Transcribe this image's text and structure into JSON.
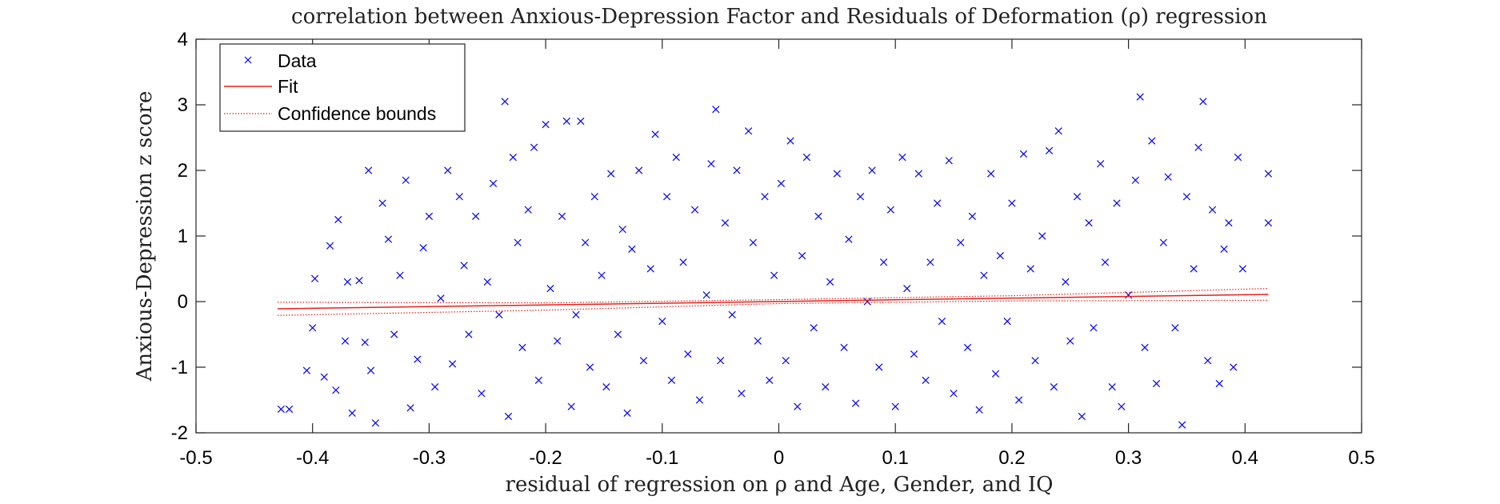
{
  "chart_data": {
    "type": "scatter",
    "title": "correlation between Anxious-Depression Factor and Residuals of Deformation (ρ) regression",
    "xlabel": "residual of regression on ρ and Age, Gender, and IQ",
    "ylabel": "Anxious-Depression z score",
    "xlim": [
      -0.5,
      0.5
    ],
    "ylim": [
      -2,
      4
    ],
    "xticks": [
      -0.5,
      -0.4,
      -0.3,
      -0.2,
      -0.1,
      0,
      0.1,
      0.2,
      0.3,
      0.4,
      0.5
    ],
    "xtick_labels": [
      "-0.5",
      "-0.4",
      "-0.3",
      "-0.2",
      "-0.1",
      "0",
      "0.1",
      "0.2",
      "0.3",
      "0.4",
      "0.5"
    ],
    "yticks": [
      -2,
      -1,
      0,
      1,
      2,
      3,
      4
    ],
    "ytick_labels": [
      "-2",
      "-1",
      "0",
      "1",
      "2",
      "3",
      "4"
    ],
    "grid": false,
    "legend": {
      "placement": "top-left",
      "entries": [
        "Data",
        "Fit",
        "Confidence bounds"
      ]
    },
    "colors": {
      "data": "#0000ff",
      "fit": "#e8201a",
      "bounds": "#e8201a"
    },
    "fit": {
      "x": [
        -0.43,
        0.42
      ],
      "y": [
        -0.11,
        0.11
      ]
    },
    "confidence_bounds": {
      "x": [
        -0.43,
        -0.2,
        0,
        0.2,
        0.42
      ],
      "upper": [
        -0.01,
        -0.02,
        0.03,
        0.09,
        0.2
      ],
      "lower": [
        -0.21,
        -0.13,
        -0.03,
        0.01,
        0.02
      ]
    },
    "series": [
      {
        "name": "Data",
        "points": [
          [
            -0.427,
            -1.64
          ],
          [
            -0.42,
            -1.64
          ],
          [
            -0.405,
            -1.05
          ],
          [
            -0.4,
            -0.4
          ],
          [
            -0.398,
            0.35
          ],
          [
            -0.39,
            -1.15
          ],
          [
            -0.385,
            0.85
          ],
          [
            -0.38,
            -1.35
          ],
          [
            -0.378,
            1.25
          ],
          [
            -0.372,
            -0.6
          ],
          [
            -0.37,
            0.3
          ],
          [
            -0.366,
            -1.7
          ],
          [
            -0.36,
            0.32
          ],
          [
            -0.355,
            -0.62
          ],
          [
            -0.352,
            2.0
          ],
          [
            -0.35,
            -1.05
          ],
          [
            -0.346,
            -1.85
          ],
          [
            -0.34,
            1.5
          ],
          [
            -0.335,
            0.95
          ],
          [
            -0.33,
            -0.5
          ],
          [
            -0.325,
            0.4
          ],
          [
            -0.32,
            1.85
          ],
          [
            -0.316,
            -1.62
          ],
          [
            -0.31,
            -0.88
          ],
          [
            -0.305,
            0.82
          ],
          [
            -0.3,
            1.3
          ],
          [
            -0.295,
            -1.3
          ],
          [
            -0.29,
            0.05
          ],
          [
            -0.284,
            2.0
          ],
          [
            -0.28,
            -0.95
          ],
          [
            -0.274,
            1.6
          ],
          [
            -0.27,
            0.55
          ],
          [
            -0.266,
            -0.5
          ],
          [
            -0.26,
            1.3
          ],
          [
            -0.255,
            -1.4
          ],
          [
            -0.25,
            0.3
          ],
          [
            -0.245,
            1.8
          ],
          [
            -0.24,
            -0.2
          ],
          [
            -0.235,
            3.05
          ],
          [
            -0.232,
            -1.75
          ],
          [
            -0.228,
            2.2
          ],
          [
            -0.224,
            0.9
          ],
          [
            -0.22,
            -0.7
          ],
          [
            -0.215,
            1.4
          ],
          [
            -0.21,
            2.35
          ],
          [
            -0.206,
            -1.2
          ],
          [
            -0.2,
            2.7
          ],
          [
            -0.196,
            0.2
          ],
          [
            -0.19,
            -0.6
          ],
          [
            -0.186,
            1.3
          ],
          [
            -0.182,
            2.75
          ],
          [
            -0.178,
            -1.6
          ],
          [
            -0.174,
            -0.2
          ],
          [
            -0.17,
            2.75
          ],
          [
            -0.166,
            0.9
          ],
          [
            -0.162,
            -1.0
          ],
          [
            -0.158,
            1.6
          ],
          [
            -0.152,
            0.4
          ],
          [
            -0.148,
            -1.3
          ],
          [
            -0.144,
            1.95
          ],
          [
            -0.138,
            -0.5
          ],
          [
            -0.134,
            1.1
          ],
          [
            -0.13,
            -1.7
          ],
          [
            -0.126,
            0.8
          ],
          [
            -0.12,
            2.0
          ],
          [
            -0.116,
            -0.9
          ],
          [
            -0.11,
            0.5
          ],
          [
            -0.106,
            2.55
          ],
          [
            -0.1,
            -0.3
          ],
          [
            -0.096,
            1.6
          ],
          [
            -0.092,
            -1.2
          ],
          [
            -0.088,
            2.2
          ],
          [
            -0.082,
            0.6
          ],
          [
            -0.078,
            -0.8
          ],
          [
            -0.072,
            1.4
          ],
          [
            -0.068,
            -1.5
          ],
          [
            -0.062,
            0.1
          ],
          [
            -0.058,
            2.1
          ],
          [
            -0.054,
            2.93
          ],
          [
            -0.05,
            -0.9
          ],
          [
            -0.046,
            1.2
          ],
          [
            -0.04,
            -0.2
          ],
          [
            -0.036,
            2.0
          ],
          [
            -0.032,
            -1.4
          ],
          [
            -0.026,
            2.6
          ],
          [
            -0.022,
            0.9
          ],
          [
            -0.018,
            -0.6
          ],
          [
            -0.012,
            1.6
          ],
          [
            -0.008,
            -1.2
          ],
          [
            -0.004,
            0.4
          ],
          [
            0.002,
            1.8
          ],
          [
            0.006,
            -0.9
          ],
          [
            0.01,
            2.45
          ],
          [
            0.016,
            -1.6
          ],
          [
            0.02,
            0.7
          ],
          [
            0.024,
            2.2
          ],
          [
            0.03,
            -0.4
          ],
          [
            0.034,
            1.3
          ],
          [
            0.04,
            -1.3
          ],
          [
            0.044,
            0.3
          ],
          [
            0.05,
            1.95
          ],
          [
            0.056,
            -0.7
          ],
          [
            0.06,
            0.95
          ],
          [
            0.066,
            -1.55
          ],
          [
            0.07,
            1.6
          ],
          [
            0.076,
            0.0
          ],
          [
            0.08,
            2.0
          ],
          [
            0.086,
            -1.0
          ],
          [
            0.09,
            0.6
          ],
          [
            0.096,
            1.4
          ],
          [
            0.1,
            -1.6
          ],
          [
            0.106,
            2.2
          ],
          [
            0.11,
            0.2
          ],
          [
            0.116,
            -0.8
          ],
          [
            0.12,
            1.95
          ],
          [
            0.126,
            -1.2
          ],
          [
            0.13,
            0.6
          ],
          [
            0.136,
            1.5
          ],
          [
            0.14,
            -0.3
          ],
          [
            0.146,
            2.15
          ],
          [
            0.15,
            -1.4
          ],
          [
            0.156,
            0.9
          ],
          [
            0.162,
            -0.7
          ],
          [
            0.166,
            1.3
          ],
          [
            0.172,
            -1.65
          ],
          [
            0.176,
            0.4
          ],
          [
            0.182,
            1.95
          ],
          [
            0.186,
            -1.1
          ],
          [
            0.19,
            0.7
          ],
          [
            0.196,
            -0.3
          ],
          [
            0.2,
            1.5
          ],
          [
            0.206,
            -1.5
          ],
          [
            0.21,
            2.25
          ],
          [
            0.216,
            0.5
          ],
          [
            0.22,
            -0.9
          ],
          [
            0.226,
            1.0
          ],
          [
            0.232,
            2.3
          ],
          [
            0.236,
            -1.3
          ],
          [
            0.24,
            2.6
          ],
          [
            0.246,
            0.3
          ],
          [
            0.25,
            -0.6
          ],
          [
            0.256,
            1.6
          ],
          [
            0.26,
            -1.75
          ],
          [
            0.266,
            1.2
          ],
          [
            0.27,
            -0.4
          ],
          [
            0.276,
            2.1
          ],
          [
            0.28,
            0.6
          ],
          [
            0.286,
            -1.3
          ],
          [
            0.29,
            1.5
          ],
          [
            0.294,
            -1.6
          ],
          [
            0.3,
            0.1
          ],
          [
            0.306,
            1.85
          ],
          [
            0.31,
            3.12
          ],
          [
            0.314,
            -0.7
          ],
          [
            0.32,
            2.45
          ],
          [
            0.324,
            -1.25
          ],
          [
            0.33,
            0.9
          ],
          [
            0.334,
            1.9
          ],
          [
            0.34,
            -0.4
          ],
          [
            0.346,
            -1.88
          ],
          [
            0.35,
            1.6
          ],
          [
            0.356,
            0.5
          ],
          [
            0.36,
            2.35
          ],
          [
            0.364,
            3.05
          ],
          [
            0.368,
            -0.9
          ],
          [
            0.372,
            1.4
          ],
          [
            0.378,
            -1.25
          ],
          [
            0.382,
            0.8
          ],
          [
            0.386,
            1.2
          ],
          [
            0.39,
            -1.0
          ],
          [
            0.394,
            2.2
          ],
          [
            0.398,
            0.5
          ],
          [
            0.42,
            1.95
          ],
          [
            0.42,
            1.2
          ]
        ]
      }
    ]
  }
}
